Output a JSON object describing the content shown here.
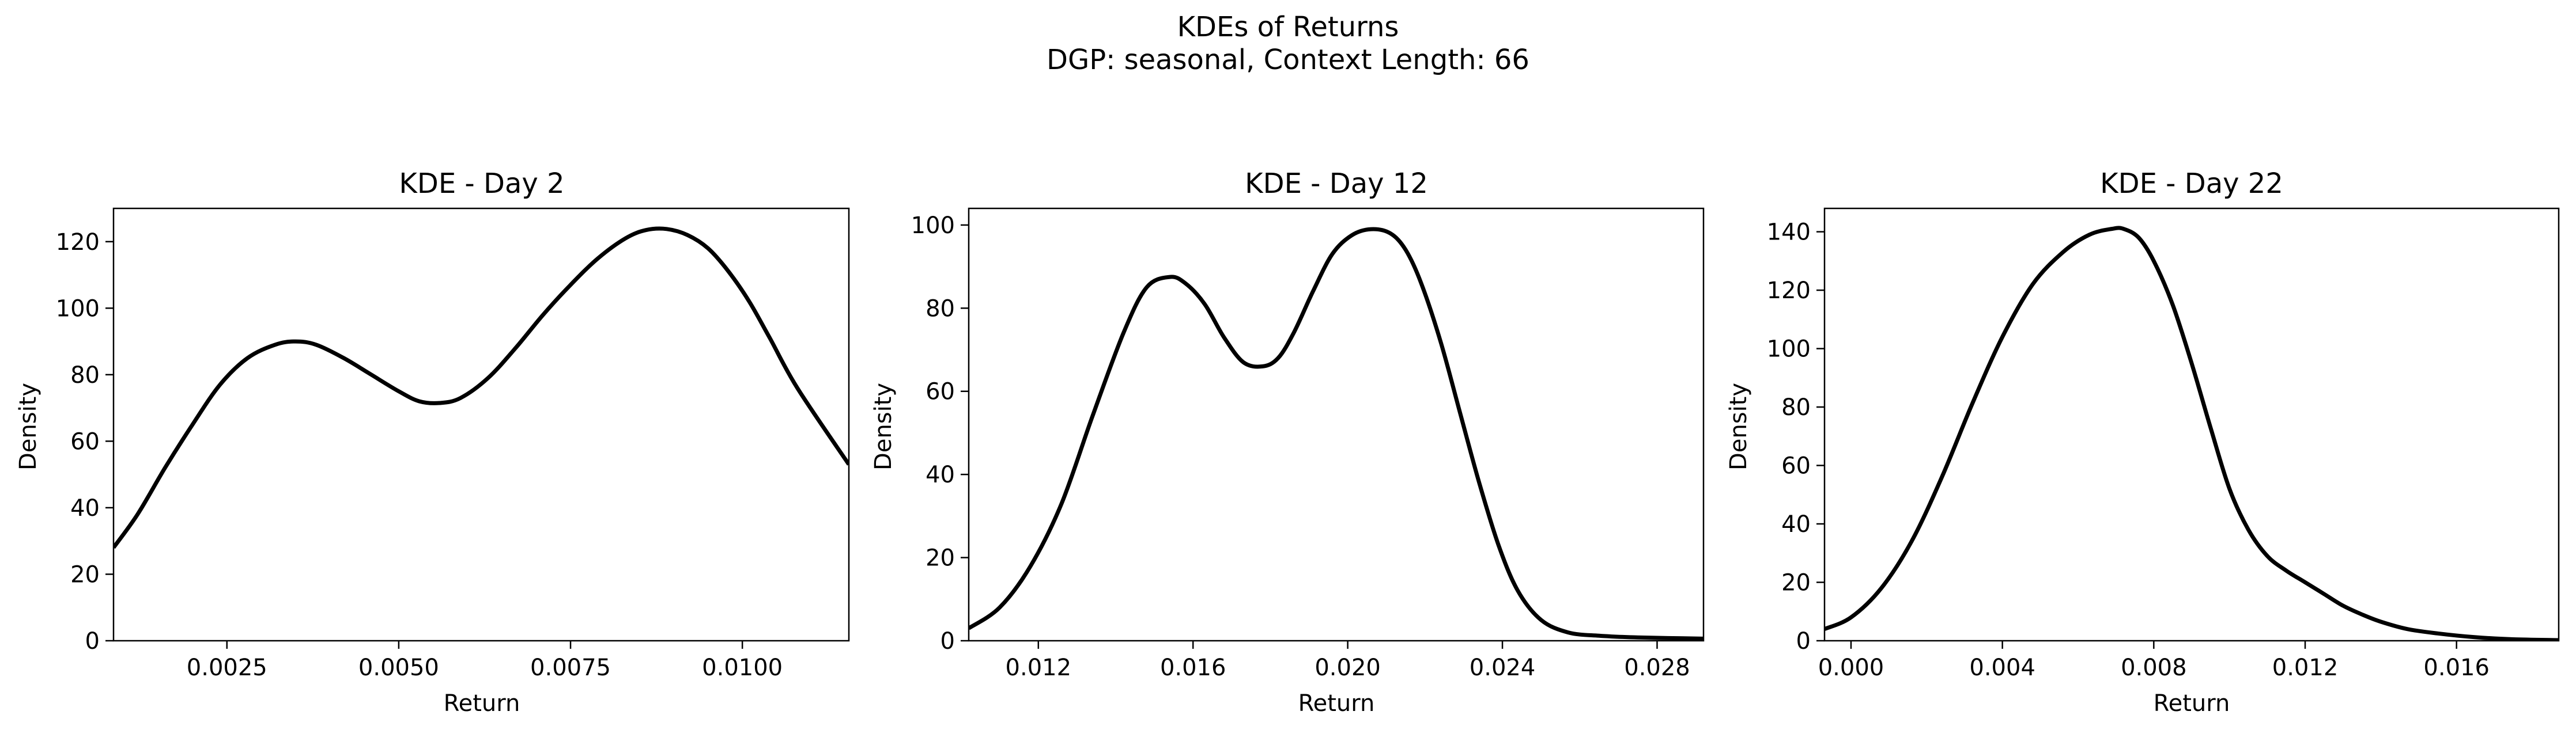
{
  "figure": {
    "title": "KDEs of Returns",
    "subtitle": "DGP: seasonal, Context Length: 66"
  },
  "colors": {
    "line": "#000000",
    "axes": "#000000",
    "background": "#ffffff"
  },
  "chart_data": [
    {
      "type": "line",
      "title": "KDE - Day 2",
      "xlabel": "Return",
      "ylabel": "Density",
      "xlim": [
        0.00085,
        0.01155
      ],
      "ylim": [
        0,
        130
      ],
      "xticks": [
        0.0025,
        0.005,
        0.0075,
        0.01
      ],
      "xtick_labels": [
        "0.0025",
        "0.0050",
        "0.0075",
        "0.0100"
      ],
      "yticks": [
        0,
        20,
        40,
        60,
        80,
        100,
        120
      ],
      "ytick_labels": [
        "0",
        "20",
        "40",
        "60",
        "80",
        "100",
        "120"
      ],
      "grid": false,
      "series": [
        {
          "x": [
            0.00085,
            0.0012,
            0.0016,
            0.002,
            0.0024,
            0.0028,
            0.0032,
            0.0035,
            0.0038,
            0.0042,
            0.0046,
            0.005,
            0.0053,
            0.0056,
            0.0059,
            0.0063,
            0.0067,
            0.0071,
            0.0075,
            0.0079,
            0.0083,
            0.0086,
            0.0089,
            0.0092,
            0.0095,
            0.0098,
            0.0101,
            0.0104,
            0.0108,
            0.01155
          ],
          "y": [
            28,
            38,
            52,
            65,
            77,
            85,
            89,
            90,
            89,
            85,
            80,
            75,
            72,
            71.5,
            73,
            79,
            88,
            98,
            107,
            115,
            121,
            123.5,
            123.8,
            122,
            118,
            111,
            102,
            91,
            76,
            53
          ]
        }
      ]
    },
    {
      "type": "line",
      "title": "KDE - Day 12",
      "xlabel": "Return",
      "ylabel": "Density",
      "xlim": [
        0.0102,
        0.0292
      ],
      "ylim": [
        0,
        104
      ],
      "xticks": [
        0.012,
        0.016,
        0.02,
        0.024,
        0.028
      ],
      "xtick_labels": [
        "0.012",
        "0.016",
        "0.020",
        "0.024",
        "0.028"
      ],
      "yticks": [
        0,
        20,
        40,
        60,
        80,
        100
      ],
      "ytick_labels": [
        "0",
        "20",
        "40",
        "60",
        "80",
        "100"
      ],
      "grid": false,
      "series": [
        {
          "x": [
            0.0102,
            0.011,
            0.0118,
            0.0126,
            0.0134,
            0.0142,
            0.0148,
            0.0154,
            0.0158,
            0.0163,
            0.0168,
            0.0173,
            0.0178,
            0.0182,
            0.0186,
            0.0191,
            0.0196,
            0.0201,
            0.0206,
            0.0211,
            0.0215,
            0.0219,
            0.0224,
            0.0229,
            0.0234,
            0.0239,
            0.0244,
            0.025,
            0.0257,
            0.0265,
            0.0275,
            0.0292
          ],
          "y": [
            3,
            8,
            18,
            33,
            54,
            74,
            85,
            87.5,
            86,
            81,
            73,
            67,
            66,
            68,
            74,
            84,
            93,
            97.5,
            99,
            98,
            94,
            86,
            72,
            55,
            38,
            23,
            12,
            5,
            2,
            1.2,
            0.8,
            0.5
          ]
        }
      ]
    },
    {
      "type": "line",
      "title": "KDE - Day 22",
      "xlabel": "Return",
      "ylabel": "Density",
      "xlim": [
        -0.0007,
        0.0187
      ],
      "ylim": [
        0,
        148
      ],
      "xticks": [
        0,
        0.004,
        0.008,
        0.012,
        0.016
      ],
      "xtick_labels": [
        "0.000",
        "0.004",
        "0.008",
        "0.012",
        "0.016"
      ],
      "yticks": [
        0,
        20,
        40,
        60,
        80,
        100,
        120,
        140
      ],
      "ytick_labels": [
        "0",
        "20",
        "40",
        "60",
        "80",
        "100",
        "120",
        "140"
      ],
      "grid": false,
      "series": [
        {
          "x": [
            -0.0007,
            0.0,
            0.0008,
            0.0016,
            0.0024,
            0.0032,
            0.004,
            0.0048,
            0.0056,
            0.0063,
            0.0069,
            0.0072,
            0.0076,
            0.008,
            0.0085,
            0.009,
            0.0095,
            0.01,
            0.0105,
            0.011,
            0.0115,
            0.012,
            0.0125,
            0.013,
            0.0135,
            0.014,
            0.0147,
            0.0155,
            0.0165,
            0.0175,
            0.0187
          ],
          "y": [
            4,
            8,
            18,
            34,
            56,
            81,
            104,
            122,
            133,
            139,
            141,
            141,
            138,
            130,
            115,
            95,
            73,
            52,
            38,
            29,
            24,
            20,
            16,
            12,
            9,
            6.5,
            4,
            2.5,
            1.2,
            0.5,
            0.2
          ]
        }
      ]
    }
  ]
}
